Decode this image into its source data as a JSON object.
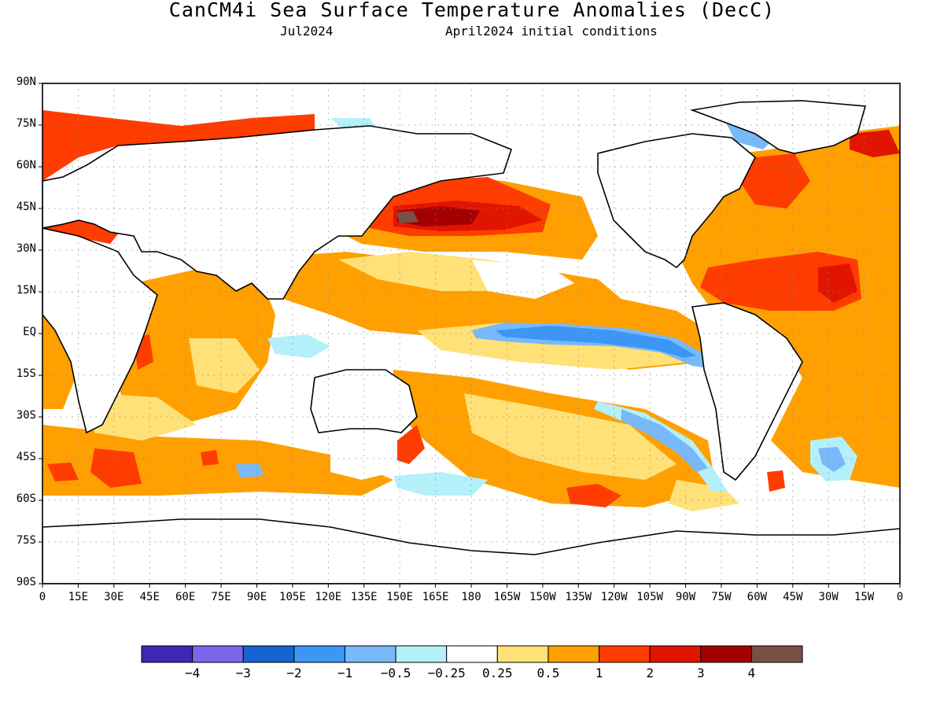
{
  "header": {
    "title": "CanCM4i Sea Surface Temperature Anomalies (DecC)",
    "forecast_month": "Jul2024",
    "initial_conditions": "April2024 initial conditions"
  },
  "axes": {
    "lat_ticks": [
      "90N",
      "75N",
      "60N",
      "45N",
      "30N",
      "15N",
      "EQ",
      "15S",
      "30S",
      "45S",
      "60S",
      "75S",
      "90S"
    ],
    "lon_ticks": [
      "0",
      "15E",
      "30E",
      "45E",
      "60E",
      "75E",
      "90E",
      "105E",
      "120E",
      "135E",
      "150E",
      "165E",
      "180",
      "165W",
      "150W",
      "135W",
      "120W",
      "105W",
      "90W",
      "75W",
      "60W",
      "45W",
      "30W",
      "15W",
      "0"
    ]
  },
  "colorbar": {
    "colors": [
      "#3c28b4",
      "#7d64eb",
      "#1464d2",
      "#3c96f5",
      "#78b9fa",
      "#b4f0fa",
      "#ffffff",
      "#ffe178",
      "#ffa000",
      "#ff3c00",
      "#e11400",
      "#a50000",
      "#785046"
    ],
    "labels": [
      "−4",
      "−3",
      "−2",
      "−1",
      "−0.5",
      "−0.25",
      "0.25",
      "0.5",
      "1",
      "2",
      "3",
      "4"
    ]
  },
  "map_features": [
    {
      "name": "north-pacific-warm-blob",
      "anomaly": 3,
      "color": "#a50000"
    },
    {
      "name": "equatorial-pacific-cool-tongue",
      "anomaly": -1,
      "color": "#3c96f5"
    },
    {
      "name": "tropical-north-atlantic-warm",
      "anomaly": 2,
      "color": "#ff3c00"
    },
    {
      "name": "southeast-pacific-cool-band",
      "anomaly": -0.5,
      "color": "#78b9fa"
    }
  ]
}
